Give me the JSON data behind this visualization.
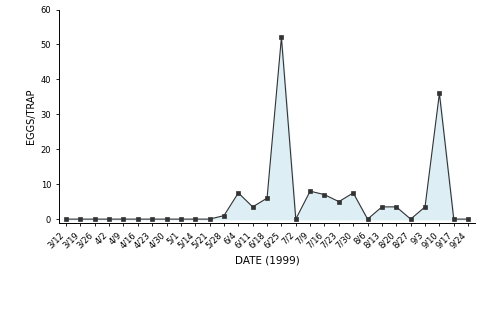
{
  "dates": [
    "3/12",
    "3/19",
    "3/26",
    "4/2",
    "4/9",
    "4/16",
    "4/23",
    "4/30",
    "5/1",
    "5/14",
    "5/21",
    "5/28",
    "6/4",
    "6/11",
    "6/18",
    "6/25",
    "7/2",
    "7/9",
    "7/16",
    "7/23",
    "7/30",
    "8/6",
    "8/13",
    "8/20",
    "8/27",
    "9/3",
    "9/10",
    "9/17",
    "9/24"
  ],
  "values": [
    0,
    0,
    0,
    0,
    0,
    0,
    0,
    0,
    0,
    0,
    0,
    1,
    7.5,
    3.5,
    6,
    52,
    0,
    8,
    7,
    5,
    7.5,
    0,
    3.5,
    3.5,
    0,
    3.5,
    36,
    0,
    0
  ],
  "fill_color": "#ddeef5",
  "line_color": "#333333",
  "marker_color": "#333333",
  "background_color": "#ffffff",
  "ylabel": "EGGS/TRAP",
  "xlabel": "DATE (1999)",
  "ylim": [
    -1,
    60
  ],
  "yticks": [
    0,
    10,
    20,
    30,
    40,
    50,
    60
  ],
  "axis_fontsize": 7,
  "tick_fontsize": 6,
  "xlabel_fontsize": 7.5
}
